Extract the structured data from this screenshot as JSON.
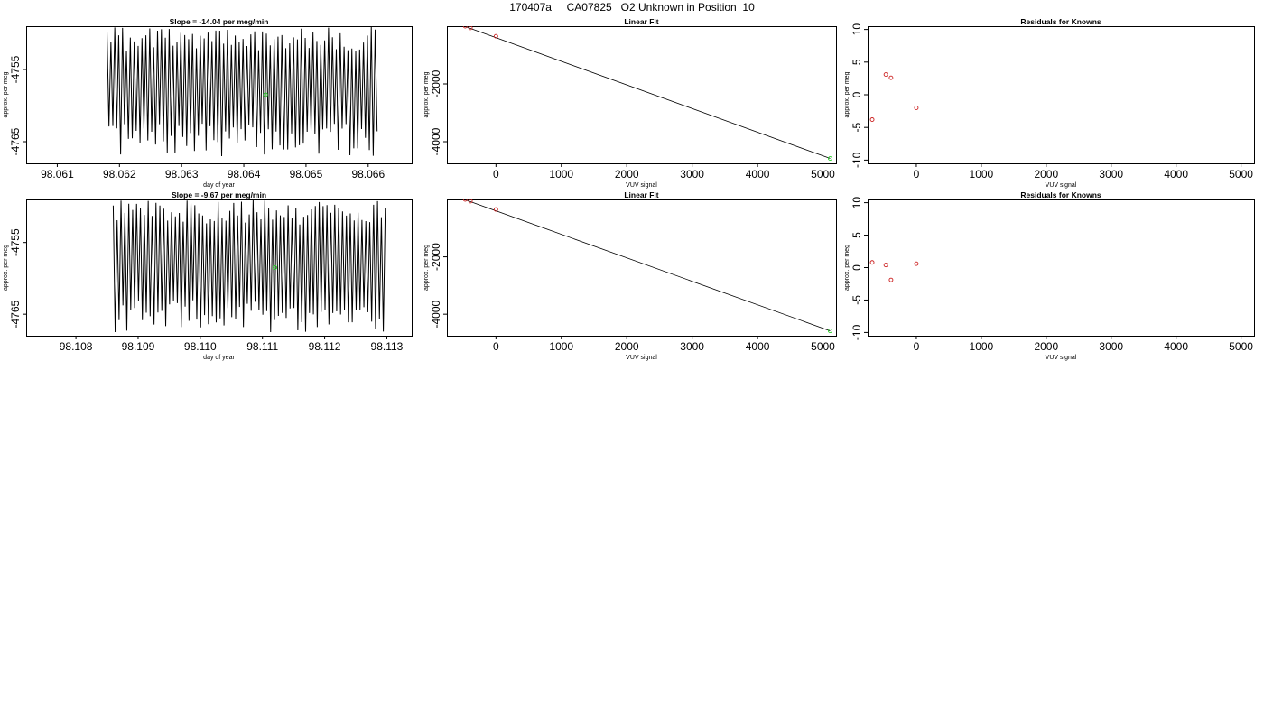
{
  "page_title": "170407a     CA07825   O2 Unknown in Position  10",
  "colors": {
    "known": "#cc2222",
    "unknown": "#22cc22",
    "line": "#000000"
  },
  "chart_data": [
    {
      "type": "line",
      "title": "Slope =  -14.04  per meg/min",
      "xlabel": "day of year",
      "ylabel": "approx. per meg",
      "xlim": [
        98.0605,
        98.0667
      ],
      "ylim": [
        -4768,
        -4749
      ],
      "xticks": [
        "98.061",
        "98.062",
        "98.063",
        "98.064",
        "98.065",
        "98.066"
      ],
      "xtick_values": [
        98.061,
        98.062,
        98.063,
        98.064,
        98.065,
        98.066
      ],
      "yticks": [
        "-4755",
        "-4765"
      ],
      "ytick_values": [
        -4755,
        -4765
      ],
      "trace": {
        "x_start": 98.0618,
        "x_end": 98.06615,
        "y_low": -4767,
        "y_high": -4749,
        "period_days": 6.25e-05,
        "seed": 7
      },
      "unknown_point": {
        "x": 98.06435,
        "y": -4758.5
      }
    },
    {
      "type": "scatter",
      "title": "Linear Fit",
      "xlabel": "VUV signal",
      "ylabel": "approx. per meg",
      "xlim": [
        -750,
        5200
      ],
      "ylim": [
        -4750,
        0
      ],
      "xticks": [
        "0",
        "1000",
        "2000",
        "3000",
        "4000",
        "5000"
      ],
      "xtick_values": [
        0,
        1000,
        2000,
        3000,
        4000,
        5000
      ],
      "yticks": [
        "-2000",
        "-4000"
      ],
      "ytick_values": [
        -2000,
        -4000
      ],
      "knowns": {
        "x": [
          -680,
          -470,
          -390,
          0
        ],
        "y": [
          160,
          0,
          -60,
          -350
        ]
      },
      "fit_line": {
        "x": [
          -680,
          5110
        ],
        "y": [
          160,
          -4580
        ]
      },
      "unknown_point": {
        "x": 5110,
        "y": -4580
      }
    },
    {
      "type": "scatter",
      "title": "Residuals for Knowns",
      "xlabel": "VUV signal",
      "ylabel": "approx. per meg",
      "xlim": [
        -750,
        5200
      ],
      "ylim": [
        -10.5,
        10.5
      ],
      "xticks": [
        "0",
        "1000",
        "2000",
        "3000",
        "4000",
        "5000"
      ],
      "xtick_values": [
        0,
        1000,
        2000,
        3000,
        4000,
        5000
      ],
      "yticks": [
        "10",
        "5",
        "0",
        "-5",
        "-10"
      ],
      "ytick_values": [
        10,
        5,
        0,
        -5,
        -10
      ],
      "knowns": {
        "x": [
          -680,
          -470,
          -390,
          0
        ],
        "y": [
          -3.8,
          3.1,
          2.6,
          -2.0
        ]
      }
    },
    {
      "type": "line",
      "title": "Slope =  -9.67  per meg/min",
      "xlabel": "day of year",
      "ylabel": "approx. per meg",
      "xlim": [
        98.1072,
        98.1134
      ],
      "ylim": [
        -4768,
        -4749
      ],
      "xticks": [
        "98.108",
        "98.109",
        "98.110",
        "98.111",
        "98.112",
        "98.113"
      ],
      "xtick_values": [
        98.108,
        98.109,
        98.11,
        98.111,
        98.112,
        98.113
      ],
      "yticks": [
        "-4755",
        "-4765"
      ],
      "ytick_values": [
        -4755,
        -4765
      ],
      "trace": {
        "x_start": 98.1086,
        "x_end": 98.113,
        "y_low": -4767.5,
        "y_high": -4749,
        "period_days": 6.25e-05,
        "seed": 19
      },
      "unknown_point": {
        "x": 98.1112,
        "y": -4758.5
      }
    },
    {
      "type": "scatter",
      "title": "Linear Fit",
      "xlabel": "VUV signal",
      "ylabel": "approx. per meg",
      "xlim": [
        -750,
        5200
      ],
      "ylim": [
        -4750,
        0
      ],
      "xticks": [
        "0",
        "1000",
        "2000",
        "3000",
        "4000",
        "5000"
      ],
      "xtick_values": [
        0,
        1000,
        2000,
        3000,
        4000,
        5000
      ],
      "yticks": [
        "-2000",
        "-4000"
      ],
      "ytick_values": [
        -2000,
        -4000
      ],
      "knowns": {
        "x": [
          -680,
          -470,
          -390,
          0
        ],
        "y": [
          160,
          0,
          -60,
          -350
        ]
      },
      "fit_line": {
        "x": [
          -680,
          5110
        ],
        "y": [
          160,
          -4580
        ]
      },
      "unknown_point": {
        "x": 5110,
        "y": -4580
      }
    },
    {
      "type": "scatter",
      "title": "Residuals for Knowns",
      "xlabel": "VUV signal",
      "ylabel": "approx. per meg",
      "xlim": [
        -750,
        5200
      ],
      "ylim": [
        -10.5,
        10.5
      ],
      "xticks": [
        "0",
        "1000",
        "2000",
        "3000",
        "4000",
        "5000"
      ],
      "xtick_values": [
        0,
        1000,
        2000,
        3000,
        4000,
        5000
      ],
      "yticks": [
        "10",
        "5",
        "0",
        "-5",
        "-10"
      ],
      "ytick_values": [
        10,
        5,
        0,
        -5,
        -10
      ],
      "knowns": {
        "x": [
          -680,
          -470,
          -390,
          0
        ],
        "y": [
          0.8,
          0.4,
          -1.9,
          0.6
        ]
      }
    }
  ]
}
